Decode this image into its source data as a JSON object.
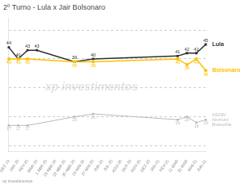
{
  "chart_data": {
    "type": "line",
    "title": "2º Turno - Lula x Jair Bolsonaro",
    "categories": [
      "DEZ-19",
      "JAN-20",
      "FEV-20",
      "MAR-20",
      "1 ABR-20",
      "15 ABR-20",
      "22 ABR-20",
      "30 ABR-20",
      "15 MAI-20",
      "27 MAI-20",
      "JUN-20",
      "JUL-20",
      "AGO-20",
      "OUT-20",
      "NOV-20",
      "DEZ-20",
      "JAN-21",
      "FEV-21",
      "11 MAR",
      "31 MAR",
      "MAI-21",
      "JUN-21"
    ],
    "series": [
      {
        "name": "Lula",
        "color": "#2F2F2F",
        "marker": "square",
        "values": [
          44,
          40,
          43,
          43,
          null,
          null,
          null,
          39,
          null,
          40,
          null,
          null,
          null,
          null,
          null,
          null,
          null,
          null,
          41,
          42,
          42,
          45
        ]
      },
      {
        "name": "Bolsonaro",
        "color": "#FFC000",
        "marker": "circle",
        "values": [
          40,
          40,
          40,
          null,
          null,
          null,
          null,
          39,
          null,
          39,
          null,
          null,
          null,
          null,
          null,
          null,
          null,
          null,
          40,
          38,
          40,
          36
        ]
      },
      {
        "name": "NS/NR/\nNenhum/\nBranco/Na",
        "color": "#BBBBBB",
        "marker": "circle",
        "values": [
          17,
          17,
          17,
          null,
          null,
          null,
          null,
          20,
          null,
          21,
          null,
          null,
          null,
          null,
          null,
          null,
          null,
          null,
          19,
          20,
          18,
          19
        ]
      }
    ],
    "ylim": [
      8,
      54
    ],
    "yticks": [
      10,
      20,
      30,
      40,
      50
    ],
    "grid": true,
    "data_labels": true,
    "tick_labels": "x",
    "annotations": [
      "xp investimentos",
      "xp investimentos"
    ]
  }
}
